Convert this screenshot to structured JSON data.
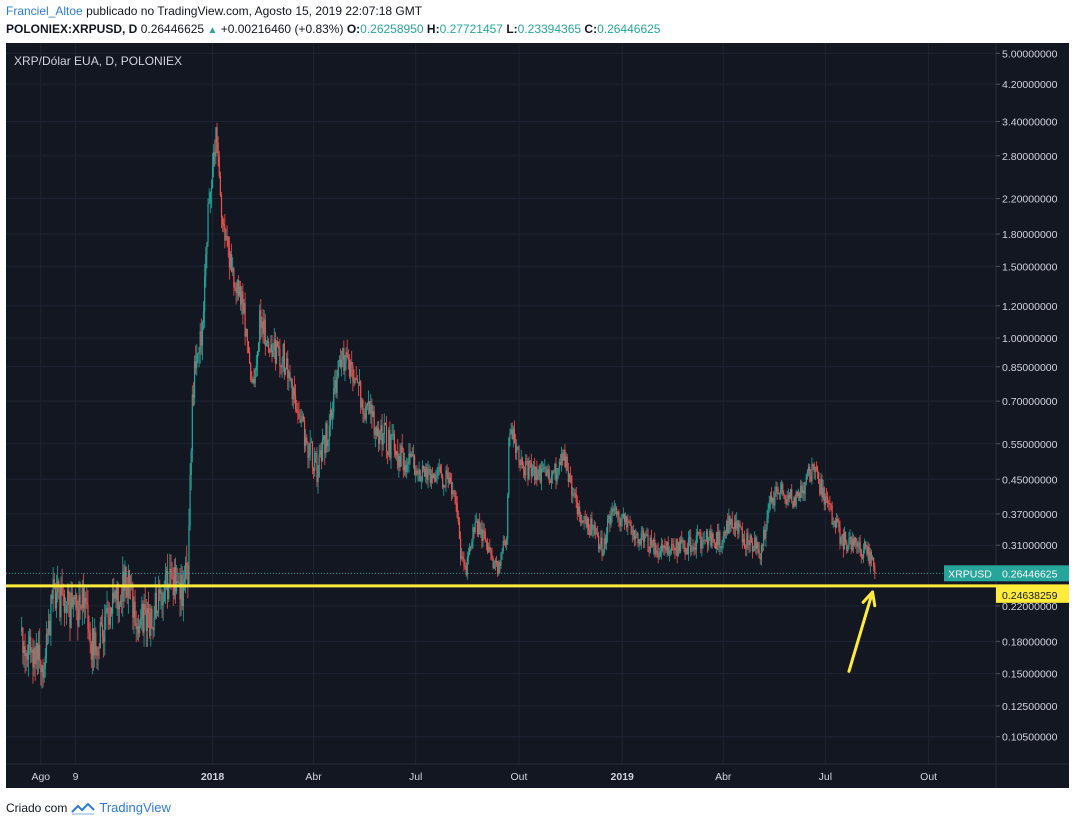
{
  "header": {
    "author": "Franciel_Altoe",
    "published": "publicado no TradingView.com, Agosto 15, 2019 22:07:18 GMT",
    "symbol": "POLONIEX:XRPUSD, D",
    "price": "0.26446625",
    "change": "+0.00216460 (+0.83%)",
    "open_label": "O:",
    "open": "0.26258950",
    "high_label": "H:",
    "high": "0.27721457",
    "low_label": "L:",
    "low": "0.23394365",
    "close_label": "C:",
    "close": "0.26446625"
  },
  "footer": {
    "created_with": "Criado com",
    "brand": "TradingView"
  },
  "colors": {
    "background": "#131722",
    "up": "#26a69a",
    "down": "#ef5350",
    "support_line": "#ffeb3b",
    "grid": "#1e2433",
    "axis_text": "#d1d4dc"
  },
  "chart_data": {
    "type": "candlestick",
    "title": "XRP/Dólar EUA, D, POLONIEX",
    "y_scale": "log",
    "ylim": [
      0.09,
      5.3
    ],
    "y_ticks": [
      "5.00000000",
      "4.20000000",
      "3.40000000",
      "2.80000000",
      "2.20000000",
      "1.80000000",
      "1.50000000",
      "1.20000000",
      "1.00000000",
      "0.85000000",
      "0.70000000",
      "0.55000000",
      "0.45000000",
      "0.37000000",
      "0.31000000",
      "0.22000000",
      "0.18000000",
      "0.15000000",
      "0.12500000",
      "0.10500000"
    ],
    "x_ticks": [
      {
        "label": "Ago",
        "date": "2017-08-01",
        "bold": false
      },
      {
        "label": "9",
        "date": "2017-09-01",
        "bold": false
      },
      {
        "label": "2018",
        "date": "2018-01-01",
        "bold": true
      },
      {
        "label": "Abr",
        "date": "2018-04-01",
        "bold": false
      },
      {
        "label": "Jul",
        "date": "2018-07-01",
        "bold": false
      },
      {
        "label": "Out",
        "date": "2018-10-01",
        "bold": false
      },
      {
        "label": "2019",
        "date": "2019-01-01",
        "bold": true
      },
      {
        "label": "Abr",
        "date": "2019-04-01",
        "bold": false
      },
      {
        "label": "Jul",
        "date": "2019-07-01",
        "bold": false
      },
      {
        "label": "Out",
        "date": "2019-10-01",
        "bold": false
      }
    ],
    "price_path": [
      [
        "2017-07-15",
        0.19
      ],
      [
        "2017-07-25",
        0.17
      ],
      [
        "2017-08-05",
        0.16
      ],
      [
        "2017-08-12",
        0.25
      ],
      [
        "2017-08-20",
        0.22
      ],
      [
        "2017-09-01",
        0.21
      ],
      [
        "2017-09-08",
        0.24
      ],
      [
        "2017-09-15",
        0.18
      ],
      [
        "2017-09-25",
        0.19
      ],
      [
        "2017-10-05",
        0.22
      ],
      [
        "2017-10-15",
        0.26
      ],
      [
        "2017-10-25",
        0.21
      ],
      [
        "2017-11-05",
        0.2
      ],
      [
        "2017-11-15",
        0.23
      ],
      [
        "2017-11-25",
        0.25
      ],
      [
        "2017-12-05",
        0.24
      ],
      [
        "2017-12-10",
        0.26
      ],
      [
        "2017-12-14",
        0.75
      ],
      [
        "2017-12-22",
        1.0
      ],
      [
        "2017-12-27",
        1.8
      ],
      [
        "2018-01-04",
        3.05
      ],
      [
        "2018-01-08",
        2.2
      ],
      [
        "2018-01-16",
        1.55
      ],
      [
        "2018-01-28",
        1.2
      ],
      [
        "2018-02-06",
        0.75
      ],
      [
        "2018-02-12",
        1.1
      ],
      [
        "2018-02-22",
        0.95
      ],
      [
        "2018-03-05",
        0.9
      ],
      [
        "2018-03-15",
        0.68
      ],
      [
        "2018-03-30",
        0.52
      ],
      [
        "2018-04-05",
        0.47
      ],
      [
        "2018-04-15",
        0.62
      ],
      [
        "2018-04-25",
        0.88
      ],
      [
        "2018-05-05",
        0.85
      ],
      [
        "2018-05-15",
        0.7
      ],
      [
        "2018-05-28",
        0.6
      ],
      [
        "2018-06-08",
        0.55
      ],
      [
        "2018-06-20",
        0.5
      ],
      [
        "2018-07-01",
        0.47
      ],
      [
        "2018-07-10",
        0.47
      ],
      [
        "2018-07-20",
        0.46
      ],
      [
        "2018-07-28",
        0.45
      ],
      [
        "2018-08-05",
        0.42
      ],
      [
        "2018-08-10",
        0.3
      ],
      [
        "2018-08-15",
        0.27
      ],
      [
        "2018-08-22",
        0.35
      ],
      [
        "2018-08-30",
        0.33
      ],
      [
        "2018-09-05",
        0.3
      ],
      [
        "2018-09-12",
        0.27
      ],
      [
        "2018-09-20",
        0.33
      ],
      [
        "2018-09-22",
        0.55
      ],
      [
        "2018-09-25",
        0.58
      ],
      [
        "2018-10-05",
        0.48
      ],
      [
        "2018-10-20",
        0.46
      ],
      [
        "2018-11-05",
        0.47
      ],
      [
        "2018-11-10",
        0.52
      ],
      [
        "2018-11-20",
        0.4
      ],
      [
        "2018-11-25",
        0.36
      ],
      [
        "2018-12-05",
        0.34
      ],
      [
        "2018-12-15",
        0.3
      ],
      [
        "2018-12-22",
        0.38
      ],
      [
        "2019-01-05",
        0.35
      ],
      [
        "2019-01-20",
        0.32
      ],
      [
        "2019-02-05",
        0.3
      ],
      [
        "2019-02-25",
        0.31
      ],
      [
        "2019-03-15",
        0.32
      ],
      [
        "2019-04-01",
        0.32
      ],
      [
        "2019-04-08",
        0.36
      ],
      [
        "2019-04-20",
        0.32
      ],
      [
        "2019-05-05",
        0.3
      ],
      [
        "2019-05-12",
        0.4
      ],
      [
        "2019-05-20",
        0.42
      ],
      [
        "2019-06-05",
        0.4
      ],
      [
        "2019-06-20",
        0.48
      ],
      [
        "2019-06-28",
        0.42
      ],
      [
        "2019-07-05",
        0.38
      ],
      [
        "2019-07-15",
        0.32
      ],
      [
        "2019-07-25",
        0.31
      ],
      [
        "2019-08-05",
        0.3
      ],
      [
        "2019-08-12",
        0.29
      ],
      [
        "2019-08-15",
        0.264
      ]
    ],
    "last_price": {
      "label": "XRPUSD",
      "value": "0.26446625",
      "numeric": 0.26446625
    },
    "support": {
      "value": "0.24638259",
      "numeric": 0.24638259
    },
    "annotation": {
      "type": "arrow",
      "from": {
        "date": "2019-07-22",
        "price": 0.152
      },
      "to": {
        "date": "2019-08-12",
        "price": 0.238
      }
    }
  }
}
